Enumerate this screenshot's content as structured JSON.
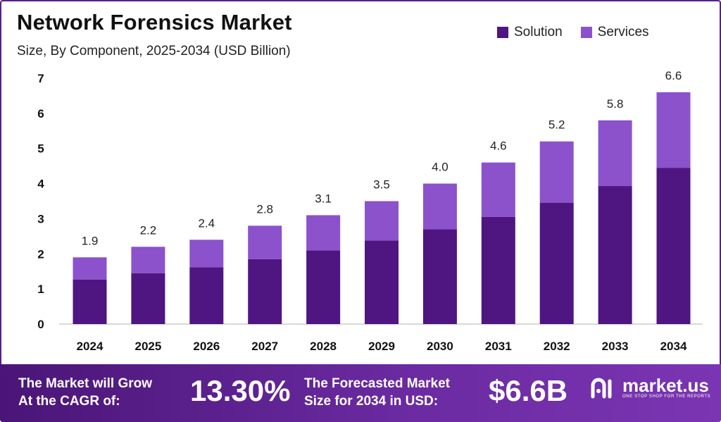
{
  "header": {
    "title": "Network Forensics Market",
    "subtitle": "Size, By Component, 2025-2034 (USD Billion)"
  },
  "colors": {
    "solution": "#4f1580",
    "services": "#8b52cc",
    "axis": "#cccccc",
    "text": "#111111"
  },
  "chart_data": {
    "type": "bar",
    "stacked": true,
    "categories": [
      "2024",
      "2025",
      "2026",
      "2027",
      "2028",
      "2029",
      "2030",
      "2031",
      "2032",
      "2033",
      "2034"
    ],
    "series": [
      {
        "name": "Solution",
        "values": [
          1.27,
          1.45,
          1.62,
          1.85,
          2.1,
          2.38,
          2.7,
          3.05,
          3.45,
          3.93,
          4.45
        ]
      },
      {
        "name": "Services",
        "values": [
          0.63,
          0.75,
          0.78,
          0.95,
          1.0,
          1.12,
          1.3,
          1.55,
          1.75,
          1.87,
          2.15
        ]
      }
    ],
    "totals": [
      "1.9",
      "2.2",
      "2.4",
      "2.8",
      "3.1",
      "3.5",
      "4.0",
      "4.6",
      "5.2",
      "5.8",
      "6.6"
    ],
    "total_values": [
      1.9,
      2.2,
      2.4,
      2.8,
      3.1,
      3.5,
      4.0,
      4.6,
      5.2,
      5.8,
      6.6
    ],
    "yticks": [
      "0",
      "1",
      "2",
      "3",
      "4",
      "5",
      "6",
      "7"
    ],
    "ylim": [
      0,
      7
    ],
    "legend_position": "top-right",
    "grid": false
  },
  "banner": {
    "cagr_label_line1": "The Market will Grow",
    "cagr_label_line2": "At the CAGR of:",
    "cagr_value": "13.30%",
    "forecast_label_line1": "The Forecasted Market",
    "forecast_label_line2": "Size for 2034 in USD:",
    "forecast_value": "$6.6B",
    "logo_name": "market.us",
    "logo_tagline": "ONE STOP SHOP FOR THE REPORTS"
  }
}
